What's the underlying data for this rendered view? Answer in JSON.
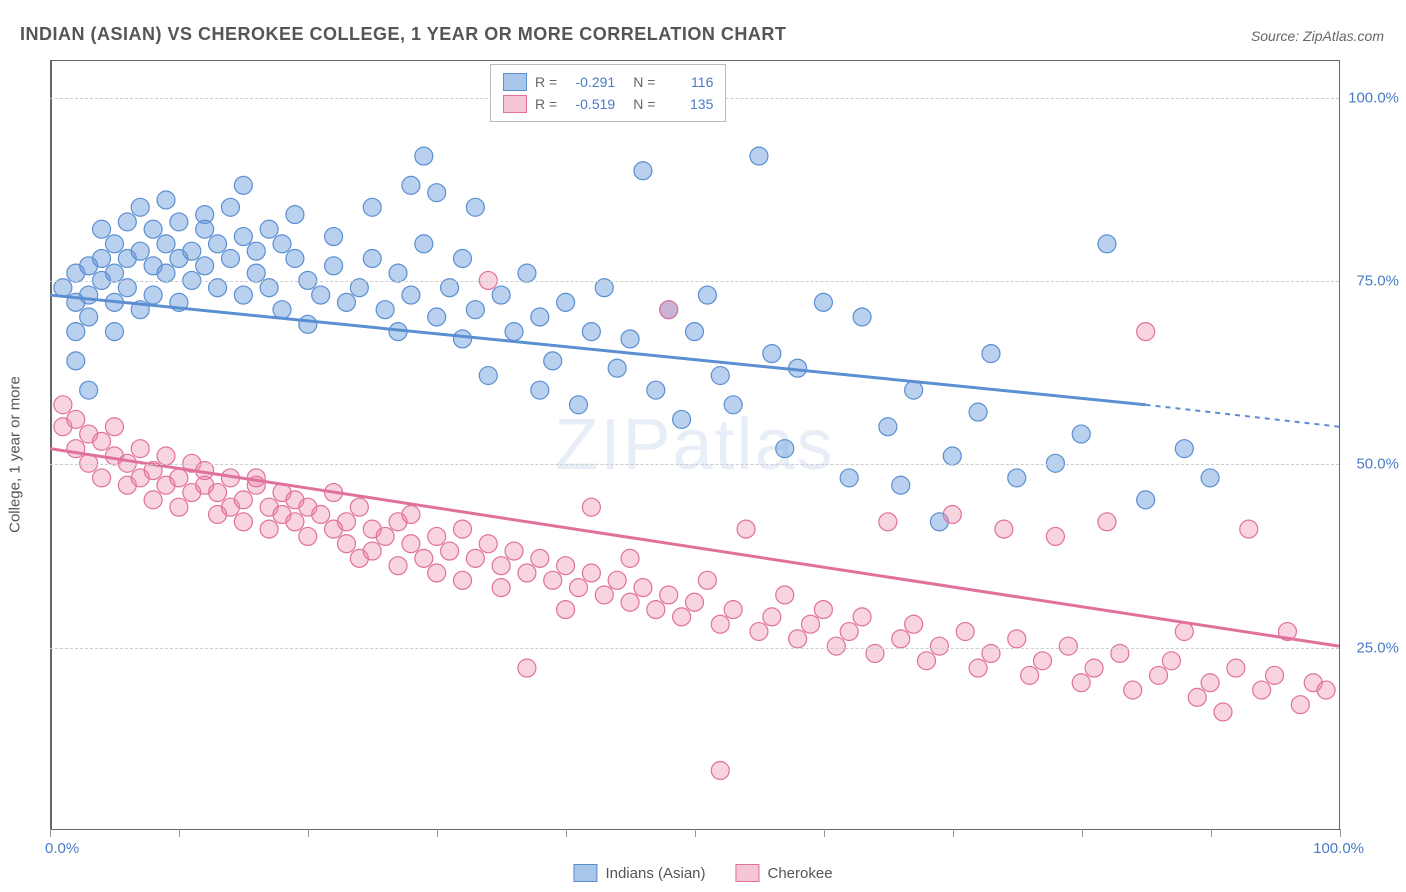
{
  "title": "INDIAN (ASIAN) VS CHEROKEE COLLEGE, 1 YEAR OR MORE CORRELATION CHART",
  "source": "Source: ZipAtlas.com",
  "watermark": "ZIPatlas",
  "y_axis_title": "College, 1 year or more",
  "x_labels": {
    "min": "0.0%",
    "max": "100.0%"
  },
  "y_labels": {
    "25": "25.0%",
    "50": "50.0%",
    "75": "75.0%",
    "100": "100.0%"
  },
  "series": [
    {
      "name": "Indians (Asian)",
      "color_fill": "rgba(100,150,220,0.45)",
      "color_stroke": "#5b8fd1",
      "swatch_fill": "#a8c5ea",
      "swatch_border": "#5b8fd1",
      "R": "-0.291",
      "N": "116",
      "trend": {
        "x1": 0,
        "y1": 73,
        "x2_solid": 85,
        "y2_solid": 58,
        "x2": 100,
        "y2": 55
      },
      "points": [
        [
          1,
          74
        ],
        [
          2,
          76
        ],
        [
          2,
          72
        ],
        [
          2,
          68
        ],
        [
          2,
          64
        ],
        [
          3,
          77
        ],
        [
          3,
          73
        ],
        [
          3,
          70
        ],
        [
          3,
          60
        ],
        [
          4,
          78
        ],
        [
          4,
          75
        ],
        [
          4,
          82
        ],
        [
          5,
          80
        ],
        [
          5,
          76
        ],
        [
          5,
          72
        ],
        [
          5,
          68
        ],
        [
          6,
          83
        ],
        [
          6,
          78
        ],
        [
          6,
          74
        ],
        [
          7,
          85
        ],
        [
          7,
          79
        ],
        [
          7,
          71
        ],
        [
          8,
          82
        ],
        [
          8,
          77
        ],
        [
          8,
          73
        ],
        [
          9,
          80
        ],
        [
          9,
          76
        ],
        [
          9,
          86
        ],
        [
          10,
          83
        ],
        [
          10,
          78
        ],
        [
          10,
          72
        ],
        [
          11,
          79
        ],
        [
          11,
          75
        ],
        [
          12,
          84
        ],
        [
          12,
          77
        ],
        [
          12,
          82
        ],
        [
          13,
          80
        ],
        [
          13,
          74
        ],
        [
          14,
          85
        ],
        [
          14,
          78
        ],
        [
          15,
          81
        ],
        [
          15,
          73
        ],
        [
          15,
          88
        ],
        [
          16,
          79
        ],
        [
          16,
          76
        ],
        [
          17,
          82
        ],
        [
          17,
          74
        ],
        [
          18,
          80
        ],
        [
          18,
          71
        ],
        [
          19,
          78
        ],
        [
          19,
          84
        ],
        [
          20,
          75
        ],
        [
          20,
          69
        ],
        [
          21,
          73
        ],
        [
          22,
          77
        ],
        [
          22,
          81
        ],
        [
          23,
          72
        ],
        [
          24,
          74
        ],
        [
          25,
          78
        ],
        [
          25,
          85
        ],
        [
          26,
          71
        ],
        [
          27,
          76
        ],
        [
          27,
          68
        ],
        [
          28,
          88
        ],
        [
          28,
          73
        ],
        [
          29,
          92
        ],
        [
          29,
          80
        ],
        [
          30,
          87
        ],
        [
          30,
          70
        ],
        [
          31,
          74
        ],
        [
          32,
          67
        ],
        [
          32,
          78
        ],
        [
          33,
          71
        ],
        [
          33,
          85
        ],
        [
          34,
          62
        ],
        [
          35,
          73
        ],
        [
          36,
          68
        ],
        [
          37,
          76
        ],
        [
          38,
          70
        ],
        [
          38,
          60
        ],
        [
          39,
          64
        ],
        [
          40,
          72
        ],
        [
          41,
          58
        ],
        [
          42,
          68
        ],
        [
          43,
          74
        ],
        [
          44,
          63
        ],
        [
          45,
          67
        ],
        [
          46,
          90
        ],
        [
          47,
          60
        ],
        [
          48,
          71
        ],
        [
          49,
          56
        ],
        [
          50,
          68
        ],
        [
          51,
          73
        ],
        [
          52,
          62
        ],
        [
          53,
          58
        ],
        [
          55,
          92
        ],
        [
          56,
          65
        ],
        [
          57,
          52
        ],
        [
          58,
          63
        ],
        [
          60,
          72
        ],
        [
          62,
          48
        ],
        [
          63,
          70
        ],
        [
          65,
          55
        ],
        [
          66,
          47
        ],
        [
          67,
          60
        ],
        [
          69,
          42
        ],
        [
          70,
          51
        ],
        [
          72,
          57
        ],
        [
          73,
          65
        ],
        [
          75,
          48
        ],
        [
          78,
          50
        ],
        [
          80,
          54
        ],
        [
          82,
          80
        ],
        [
          85,
          45
        ],
        [
          88,
          52
        ],
        [
          90,
          48
        ]
      ]
    },
    {
      "name": "Cherokee",
      "color_fill": "rgba(235,130,165,0.35)",
      "color_stroke": "#e0719c",
      "swatch_fill": "#f6c5d6",
      "swatch_border": "#e0719c",
      "R": "-0.519",
      "N": "135",
      "trend": {
        "x1": 0,
        "y1": 52,
        "x2_solid": 100,
        "y2_solid": 25,
        "x2": 100,
        "y2": 25
      },
      "points": [
        [
          1,
          58
        ],
        [
          1,
          55
        ],
        [
          2,
          56
        ],
        [
          2,
          52
        ],
        [
          3,
          54
        ],
        [
          3,
          50
        ],
        [
          4,
          53
        ],
        [
          4,
          48
        ],
        [
          5,
          55
        ],
        [
          5,
          51
        ],
        [
          6,
          50
        ],
        [
          6,
          47
        ],
        [
          7,
          52
        ],
        [
          7,
          48
        ],
        [
          8,
          49
        ],
        [
          8,
          45
        ],
        [
          9,
          51
        ],
        [
          9,
          47
        ],
        [
          10,
          48
        ],
        [
          10,
          44
        ],
        [
          11,
          50
        ],
        [
          11,
          46
        ],
        [
          12,
          47
        ],
        [
          12,
          49
        ],
        [
          13,
          46
        ],
        [
          13,
          43
        ],
        [
          14,
          48
        ],
        [
          14,
          44
        ],
        [
          15,
          45
        ],
        [
          15,
          42
        ],
        [
          16,
          47
        ],
        [
          16,
          48
        ],
        [
          17,
          44
        ],
        [
          17,
          41
        ],
        [
          18,
          46
        ],
        [
          18,
          43
        ],
        [
          19,
          42
        ],
        [
          19,
          45
        ],
        [
          20,
          44
        ],
        [
          20,
          40
        ],
        [
          21,
          43
        ],
        [
          22,
          41
        ],
        [
          22,
          46
        ],
        [
          23,
          39
        ],
        [
          23,
          42
        ],
        [
          24,
          44
        ],
        [
          24,
          37
        ],
        [
          25,
          41
        ],
        [
          25,
          38
        ],
        [
          26,
          40
        ],
        [
          27,
          42
        ],
        [
          27,
          36
        ],
        [
          28,
          39
        ],
        [
          28,
          43
        ],
        [
          29,
          37
        ],
        [
          30,
          40
        ],
        [
          30,
          35
        ],
        [
          31,
          38
        ],
        [
          32,
          41
        ],
        [
          32,
          34
        ],
        [
          33,
          37
        ],
        [
          34,
          39
        ],
        [
          34,
          75
        ],
        [
          35,
          36
        ],
        [
          35,
          33
        ],
        [
          36,
          38
        ],
        [
          37,
          35
        ],
        [
          37,
          22
        ],
        [
          38,
          37
        ],
        [
          39,
          34
        ],
        [
          40,
          36
        ],
        [
          40,
          30
        ],
        [
          41,
          33
        ],
        [
          42,
          35
        ],
        [
          42,
          44
        ],
        [
          43,
          32
        ],
        [
          44,
          34
        ],
        [
          45,
          31
        ],
        [
          45,
          37
        ],
        [
          46,
          33
        ],
        [
          47,
          30
        ],
        [
          48,
          32
        ],
        [
          48,
          71
        ],
        [
          49,
          29
        ],
        [
          50,
          31
        ],
        [
          51,
          34
        ],
        [
          52,
          28
        ],
        [
          52,
          8
        ],
        [
          53,
          30
        ],
        [
          54,
          41
        ],
        [
          55,
          27
        ],
        [
          56,
          29
        ],
        [
          57,
          32
        ],
        [
          58,
          26
        ],
        [
          59,
          28
        ],
        [
          60,
          30
        ],
        [
          61,
          25
        ],
        [
          62,
          27
        ],
        [
          63,
          29
        ],
        [
          64,
          24
        ],
        [
          65,
          42
        ],
        [
          66,
          26
        ],
        [
          67,
          28
        ],
        [
          68,
          23
        ],
        [
          69,
          25
        ],
        [
          70,
          43
        ],
        [
          71,
          27
        ],
        [
          72,
          22
        ],
        [
          73,
          24
        ],
        [
          74,
          41
        ],
        [
          75,
          26
        ],
        [
          76,
          21
        ],
        [
          77,
          23
        ],
        [
          78,
          40
        ],
        [
          79,
          25
        ],
        [
          80,
          20
        ],
        [
          81,
          22
        ],
        [
          82,
          42
        ],
        [
          83,
          24
        ],
        [
          84,
          19
        ],
        [
          85,
          68
        ],
        [
          86,
          21
        ],
        [
          87,
          23
        ],
        [
          88,
          27
        ],
        [
          89,
          18
        ],
        [
          90,
          20
        ],
        [
          91,
          16
        ],
        [
          92,
          22
        ],
        [
          93,
          41
        ],
        [
          94,
          19
        ],
        [
          95,
          21
        ],
        [
          96,
          27
        ],
        [
          97,
          17
        ],
        [
          98,
          20
        ],
        [
          99,
          19
        ]
      ]
    }
  ],
  "chart_style": {
    "marker_radius": 9,
    "marker_stroke_width": 1.2,
    "trend_width": 3,
    "trend_dash": "5,5",
    "grid_color": "#ccc",
    "label_color": "#4a7bc8",
    "xlim": [
      0,
      100
    ],
    "ylim": [
      0,
      105
    ],
    "y_gridlines": [
      25,
      50,
      75,
      100
    ],
    "x_ticks_count": 11
  }
}
